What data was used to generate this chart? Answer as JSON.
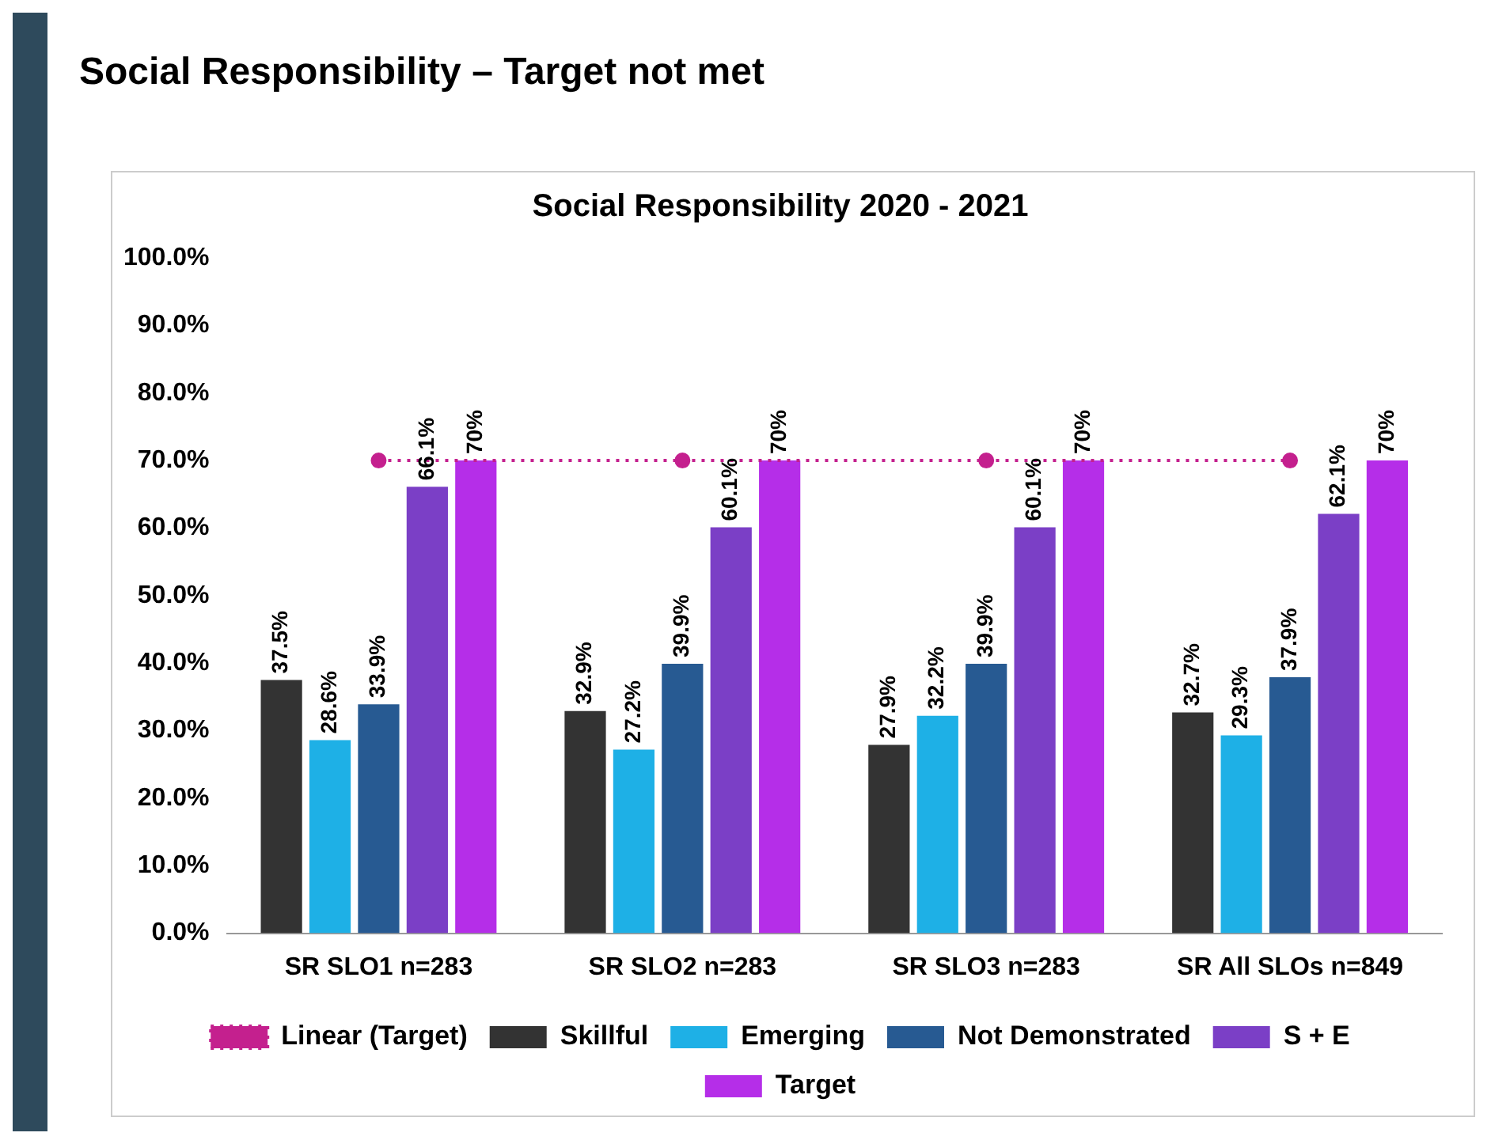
{
  "chart_data": {
    "type": "bar",
    "title": "Social Responsibility – Target not met",
    "subtitle": "Social Responsibility 2020 - 2021",
    "categories": [
      "SR SLO1 n=283",
      "SR SLO2 n=283",
      "SR SLO3 n=283",
      "SR All SLOs n=849"
    ],
    "series": [
      {
        "name": "Skillful",
        "color": "#333333",
        "values": [
          37.5,
          32.9,
          27.9,
          32.7
        ],
        "value_labels": [
          "37.5%",
          "32.9%",
          "27.9%",
          "32.7%"
        ]
      },
      {
        "name": "Emerging",
        "color": "#1eb0e6",
        "values": [
          28.6,
          27.2,
          32.2,
          29.3
        ],
        "value_labels": [
          "28.6%",
          "27.2%",
          "32.2%",
          "29.3%"
        ]
      },
      {
        "name": "Not Demonstrated",
        "color": "#275a92",
        "values": [
          33.9,
          39.9,
          39.9,
          37.9
        ],
        "value_labels": [
          "33.9%",
          "39.9%",
          "39.9%",
          "37.9%"
        ]
      },
      {
        "name": "S + E",
        "color": "#7b3fc6",
        "values": [
          66.1,
          60.1,
          60.1,
          62.1
        ],
        "value_labels": [
          "66.1%",
          "60.1%",
          "60.1%",
          "62.1%"
        ]
      },
      {
        "name": "Target",
        "color": "#b52ee8",
        "values": [
          70,
          70,
          70,
          70
        ],
        "value_labels": [
          "70%",
          "70%",
          "70%",
          "70%"
        ]
      },
      {
        "name": "Linear (Target)",
        "type": "line",
        "color": "#c4208e",
        "values": [
          70,
          70,
          70,
          70
        ],
        "line_style": "dotted",
        "marker": "circle"
      }
    ],
    "ylim": [
      0,
      100
    ],
    "yticks": [
      {
        "value": 0,
        "label": "0.0%"
      },
      {
        "value": 10,
        "label": "10.0%"
      },
      {
        "value": 20,
        "label": "20.0%"
      },
      {
        "value": 30,
        "label": "30.0%"
      },
      {
        "value": 40,
        "label": "40.0%"
      },
      {
        "value": 50,
        "label": "50.0%"
      },
      {
        "value": 60,
        "label": "60.0%"
      },
      {
        "value": 70,
        "label": "70.0%"
      },
      {
        "value": 80,
        "label": "80.0%"
      },
      {
        "value": 90,
        "label": "90.0%"
      },
      {
        "value": 100,
        "label": "100.0%"
      }
    ],
    "grid": false,
    "legend": "bottom"
  }
}
